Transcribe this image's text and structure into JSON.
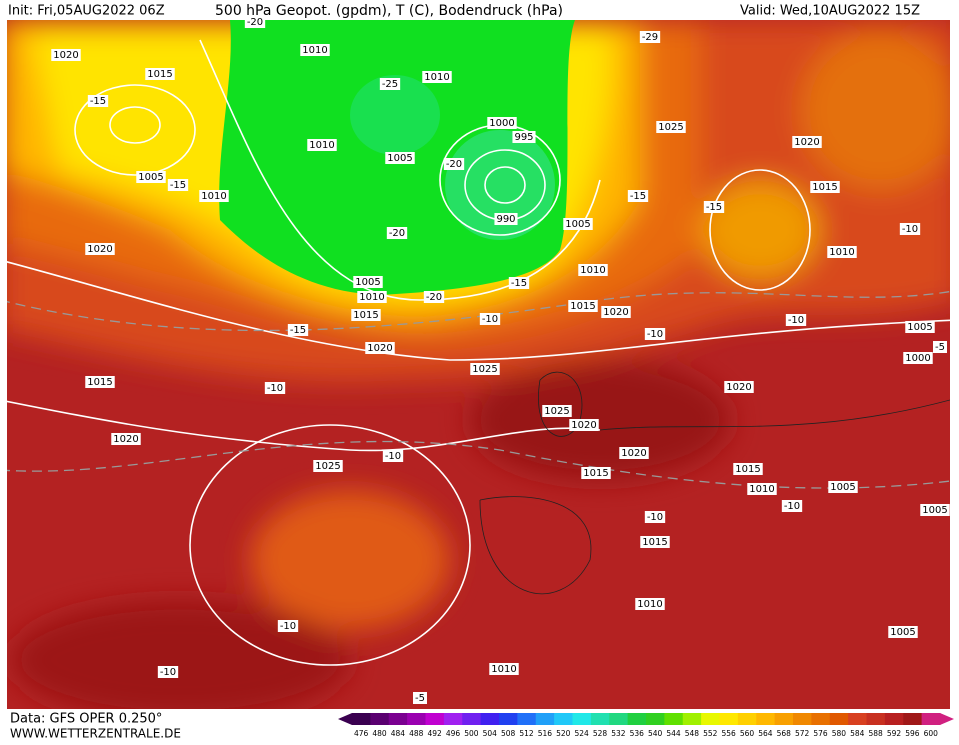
{
  "header": {
    "init": "Init: Fri,05AUG2022 06Z",
    "title": "500 hPa Geopot. (gpdm), T (C), Bodendruck (hPa)",
    "valid": "Valid: Wed,10AUG2022 15Z"
  },
  "footer": {
    "data": "Data: GFS OPER 0.250°",
    "site": "WWW.WETTERZENTRALE.DE"
  },
  "colorbar": {
    "labels": [
      476,
      480,
      484,
      488,
      492,
      496,
      500,
      504,
      508,
      512,
      516,
      520,
      524,
      528,
      532,
      536,
      540,
      544,
      548,
      552,
      556,
      560,
      564,
      568,
      572,
      576,
      580,
      584,
      588,
      592,
      596,
      600
    ],
    "colors": [
      "#3a0050",
      "#5a0070",
      "#7a0090",
      "#9a00b0",
      "#c000d0",
      "#a020f0",
      "#7020f0",
      "#4020f0",
      "#2040f0",
      "#2070f8",
      "#20a0f8",
      "#20c8f8",
      "#20e8e8",
      "#20e0b0",
      "#20d880",
      "#20d040",
      "#30d020",
      "#60e000",
      "#a0f000",
      "#e8f800",
      "#ffe800",
      "#ffd000",
      "#ffb800",
      "#f8a000",
      "#f08800",
      "#e87000",
      "#e05800",
      "#d84020",
      "#c83020",
      "#b82020",
      "#a01818",
      "#d02080"
    ]
  },
  "map": {
    "labels": [
      "1020",
      "1015",
      "-15",
      "1005",
      "-15",
      "1010",
      "1020",
      "-20",
      "1010",
      "1010",
      "-25",
      "1010",
      "1005",
      "1000",
      "995",
      "-20",
      "990",
      "-20",
      "1005",
      "1010",
      "1005",
      "1010",
      "-20",
      "-15",
      "1015",
      "-15",
      "-10",
      "1015",
      "1020",
      "-10",
      "1020",
      "-29",
      "1025",
      "-15",
      "1020",
      "1015",
      "-15",
      "1010",
      "-10",
      "-10",
      "1005",
      "1000",
      "-5",
      "1020",
      "1015",
      "-10",
      "1025",
      "1025",
      "1020",
      "1020",
      "-10",
      "1025",
      "1020",
      "1015",
      "1015",
      "1010",
      "1005",
      "-10",
      "1005",
      "-10",
      "1015",
      "1010",
      "-10",
      "1005",
      "-10",
      "1010",
      "-5"
    ]
  }
}
